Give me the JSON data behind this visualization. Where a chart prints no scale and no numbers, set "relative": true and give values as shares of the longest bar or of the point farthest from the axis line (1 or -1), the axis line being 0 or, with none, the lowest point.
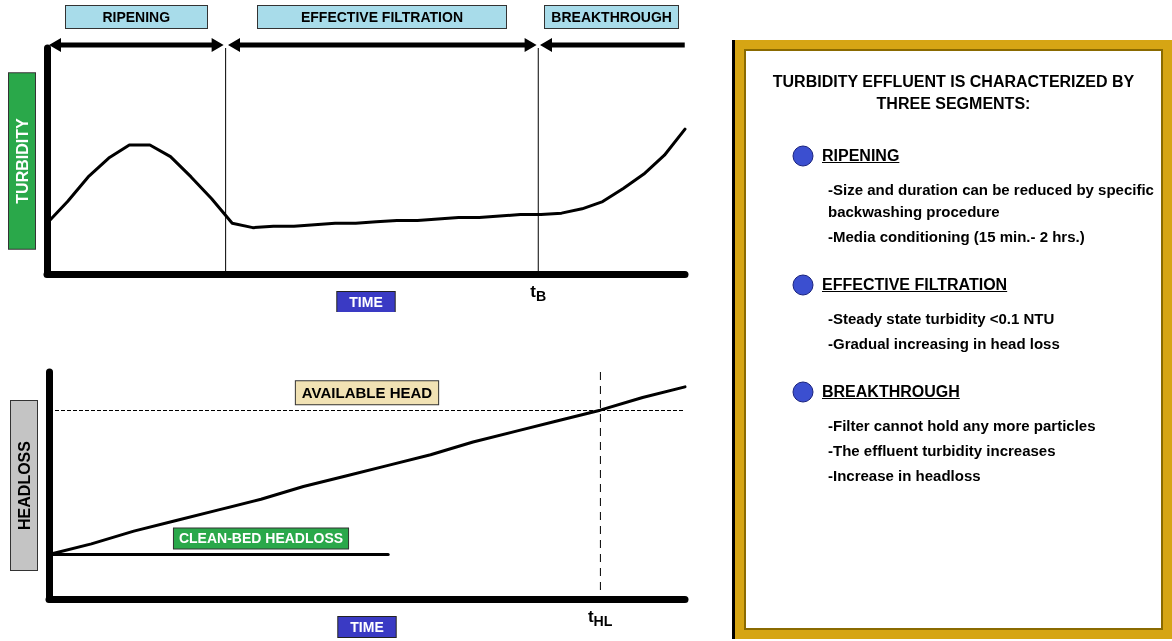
{
  "chart_data": [
    {
      "type": "line",
      "relative": true,
      "ylabel": "TURBIDITY",
      "xlabel": "TIME",
      "marker": "none",
      "categories": [
        null,
        null,
        null,
        null,
        null,
        null,
        null,
        null,
        null,
        null,
        null,
        null,
        null,
        null,
        null,
        null,
        null,
        null,
        null,
        null,
        null,
        null,
        null,
        null,
        null,
        null,
        null,
        null,
        null,
        null,
        null,
        null
      ],
      "series": [
        {
          "color": "#000000",
          "values": [
            0.35,
            0.5,
            0.67,
            0.8,
            0.89,
            0.89,
            0.81,
            0.67,
            0.52,
            0.35,
            0.32,
            0.33,
            0.33,
            0.34,
            0.35,
            0.35,
            0.36,
            0.37,
            0.37,
            0.38,
            0.39,
            0.39,
            0.4,
            0.41,
            0.41,
            0.42,
            0.45,
            0.5,
            0.59,
            0.69,
            0.82,
            1
          ]
        }
      ],
      "annotations": [
        "RIPENING",
        "EFFECTIVE FILTRATION",
        "BREAKTHROUGH",
        "t$_{B}$"
      ]
    },
    {
      "type": "line",
      "relative": true,
      "ylabel": "HEADLOSS",
      "xlabel": "TIME",
      "marker": "none",
      "categories": [
        null,
        null,
        null,
        null,
        null,
        null,
        null,
        null,
        null,
        null,
        null,
        null,
        null,
        null,
        null,
        null
      ],
      "series": [
        {
          "color": "#000000",
          "values": [
            0.21,
            0.26,
            0.32,
            0.37,
            0.42,
            0.47,
            0.53,
            0.58,
            0.63,
            0.68,
            0.74,
            0.79,
            0.84,
            0.89,
            0.95,
            1
          ]
        },
        {
          "name": "CLEAN-BED HEADLOSS",
          "color": "#000000",
          "values": [
            0.21,
            0.21,
            0.21,
            0.21,
            0.21,
            0.21,
            0.21,
            0.21,
            0.21,
            null,
            null,
            null,
            null,
            null,
            null,
            null
          ]
        }
      ],
      "ref_lines": [
        {
          "axis": "y",
          "value": 0.89,
          "label": "AVAILABLE HEAD",
          "line_style": "dashed"
        }
      ],
      "annotations": [
        "t$_{HL}$"
      ]
    },
    {
      "type": "other",
      "title": "TURBIDITY EFFLUENT IS CHARACTERIZED BY THREE SEGMENTS:",
      "subtitle": "RIPENING",
      "annotations": [
        "-Size and duration can be reduced by specific backwashing procedure",
        "-Media conditioning (15 min.- 2 hrs.)"
      ]
    },
    {
      "type": "other",
      "subtitle": "EFFECTIVE FILTRATION",
      "annotations": [
        "-Steady state turbidity <0.1 NTU",
        "-Gradual increasing in head loss"
      ]
    },
    {
      "type": "other",
      "subtitle": "BREAKTHROUGH",
      "annotations": [
        "-Filter cannot hold any more particles",
        "-The effluent turbidity increases",
        "-Increase in headloss"
      ]
    }
  ]
}
